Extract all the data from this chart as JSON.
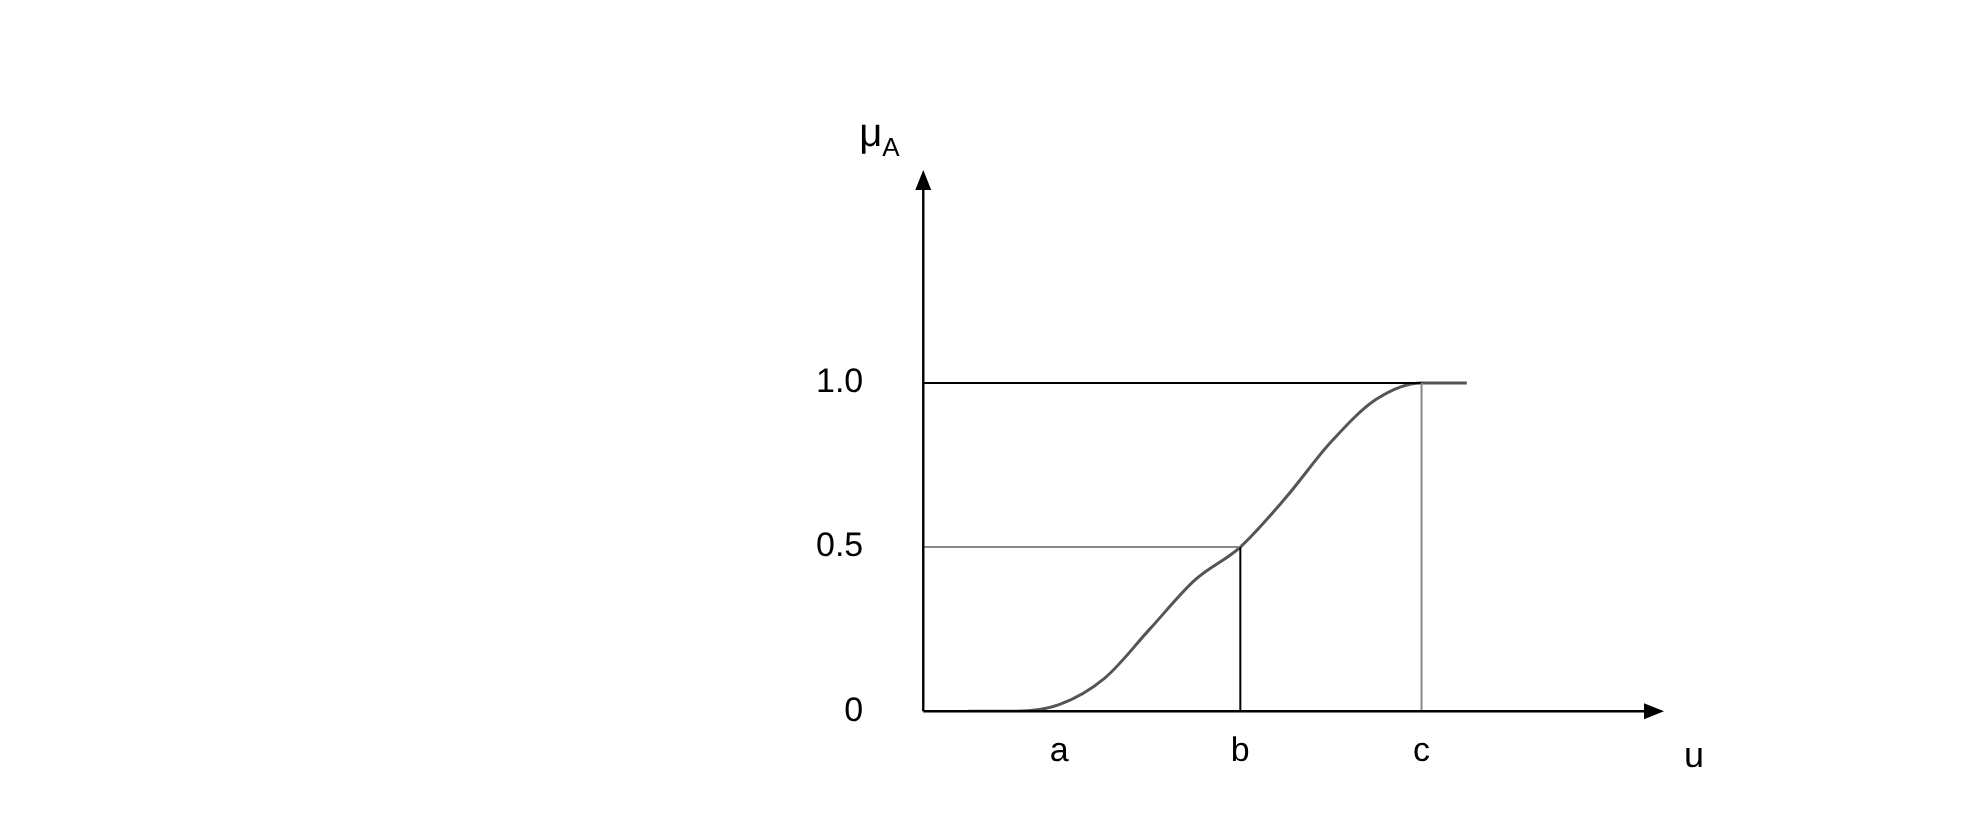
{
  "chart_data": {
    "type": "line",
    "xlabel": "u",
    "ylabel": "μ$_{A}$",
    "categories": [
      null,
      null,
      null,
      "a",
      null,
      null,
      null,
      "b",
      null,
      null,
      null,
      "c",
      null,
      null,
      null,
      null,
      null
    ],
    "series": [
      {
        "color": "#555555",
        "values": [
          null,
          0,
          0,
          0.02,
          0.1,
          0.25,
          0.4,
          0.5,
          0.65,
          0.82,
          0.95,
          1.0,
          1.0,
          null,
          null,
          null,
          null
        ]
      }
    ],
    "ylim": [
      0,
      1.6
    ],
    "yticks": [
      0,
      0.5,
      {
        "value": 1,
        "label": "1.0"
      }
    ],
    "ref_lines": [
      {
        "axis": "y",
        "value": 1,
        "color": "#000000"
      },
      {
        "axis": "y",
        "value": 0.5,
        "color": "#888888"
      },
      {
        "axis": "x",
        "value": "b",
        "color": "#000000"
      },
      {
        "axis": "x",
        "value": "c",
        "color": "#888888"
      }
    ],
    "grid": false,
    "legend": false,
    "marker": "none",
    "line_style": "solid"
  }
}
